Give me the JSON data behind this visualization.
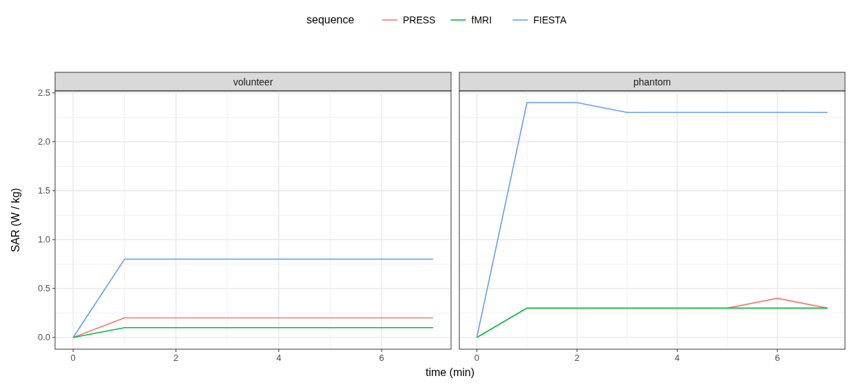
{
  "chart_data": [
    {
      "type": "line",
      "title": "volunteer",
      "xlabel": "time (min)",
      "ylabel": "SAR (W / kg)",
      "legend_title": "sequence",
      "legend": "top",
      "grid": true,
      "x": [
        0,
        1,
        2,
        3,
        4,
        5,
        6,
        7
      ],
      "xlim": [
        -0.35,
        7.35
      ],
      "xticks": [
        0,
        2,
        4,
        6
      ],
      "ylim": [
        -0.12,
        2.52
      ],
      "yticks": [
        {
          "value": 0,
          "label": "0.0"
        },
        0.5,
        {
          "value": 1,
          "label": "1.0"
        },
        1.5,
        {
          "value": 2,
          "label": "2.0"
        },
        2.5
      ],
      "series": [
        {
          "name": "PRESS",
          "color": "#f8766d",
          "values": [
            0,
            0.2,
            0.2,
            0.2,
            0.2,
            0.2,
            0.2,
            0.2
          ]
        },
        {
          "name": "fMRI",
          "color": "#00ba38",
          "values": [
            0,
            0.1,
            0.1,
            0.1,
            0.1,
            0.1,
            0.1,
            0.1
          ]
        },
        {
          "name": "FIESTA",
          "color": "#619cff",
          "values": [
            0,
            0.8,
            0.8,
            0.8,
            0.8,
            0.8,
            0.8,
            0.8
          ]
        }
      ]
    },
    {
      "type": "line",
      "title": "phantom",
      "grid": true,
      "tick_labels": "x",
      "x": [
        0,
        1,
        2,
        3,
        4,
        5,
        6,
        7
      ],
      "xlim": [
        -0.35,
        7.35
      ],
      "xticks": [
        0,
        2,
        4,
        6
      ],
      "ylim": [
        -0.12,
        2.52
      ],
      "yticks": [
        0.0,
        0.5,
        1.0,
        1.5,
        2.0,
        2.5
      ],
      "series": [
        {
          "color": "#f8766d",
          "values": [
            null,
            null,
            null,
            null,
            null,
            0.3,
            0.4,
            0.3
          ]
        },
        {
          "color": "#00ba38",
          "values": [
            0,
            0.3,
            0.3,
            0.3,
            0.3,
            0.3,
            0.3,
            0.3
          ]
        },
        {
          "color": "#619cff",
          "values": [
            0,
            2.4,
            2.4,
            2.3,
            2.3,
            2.3,
            2.3,
            2.3
          ]
        }
      ]
    }
  ]
}
